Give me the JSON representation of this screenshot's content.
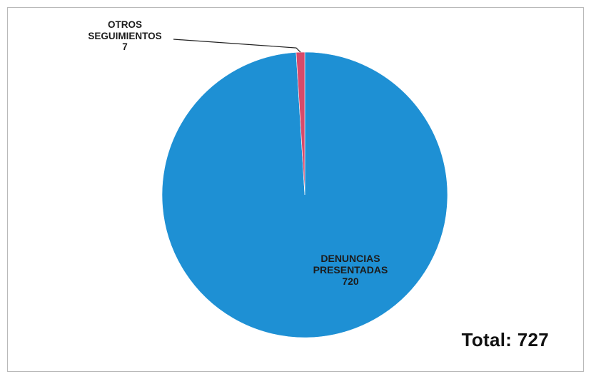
{
  "chart_data": {
    "type": "pie",
    "title": "",
    "slices": [
      {
        "label_lines": [
          "DENUNCIAS",
          "PRESENTADAS"
        ],
        "value": 720,
        "value_label": "720",
        "color": "#1e90d4"
      },
      {
        "label_lines": [
          "OTROS",
          "SEGUIMIENTOS"
        ],
        "value": 7,
        "value_label": "7",
        "color": "#d84a6a"
      }
    ],
    "total_text": "Total: 727"
  }
}
